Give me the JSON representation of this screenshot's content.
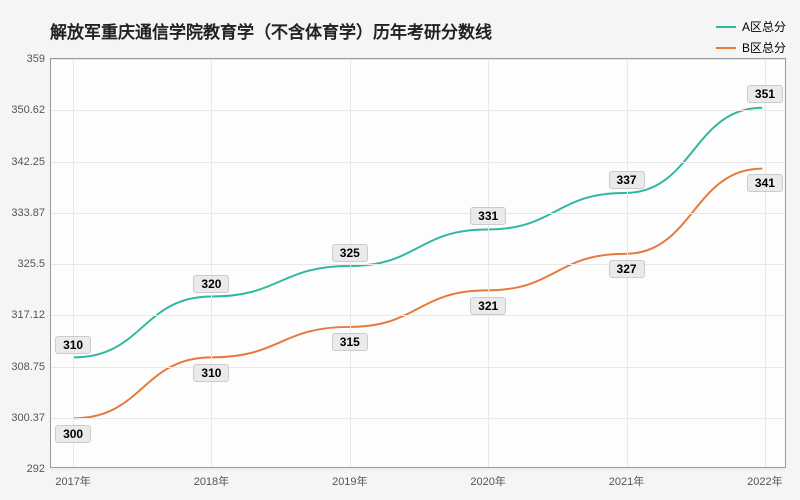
{
  "chart": {
    "type": "line",
    "title": "解放军重庆通信学院教育学（不含体育学）历年考研分数线",
    "title_fontsize": 17,
    "title_color": "#222222",
    "background_color": "#f5f5f5",
    "plot_background": "#fdfdfd",
    "border_color": "#999999",
    "grid_color": "#e8e8e8",
    "line_width": 2,
    "x": {
      "categories": [
        "2017年",
        "2018年",
        "2019年",
        "2020年",
        "2021年",
        "2022年"
      ],
      "label_fontsize": 11,
      "label_color": "#555555"
    },
    "y": {
      "min": 292,
      "max": 359,
      "ticks": [
        292,
        300.37,
        308.75,
        317.12,
        325.5,
        333.87,
        342.25,
        350.62,
        359
      ],
      "label_fontsize": 11,
      "label_color": "#555555"
    },
    "series": [
      {
        "name": "A区总分",
        "color": "#2fb8a0",
        "values": [
          310,
          320,
          325,
          331,
          337,
          351
        ],
        "label_offset_y": -14
      },
      {
        "name": "B区总分",
        "color": "#e67a3c",
        "values": [
          300,
          310,
          315,
          321,
          327,
          341
        ],
        "label_offset_y": 14
      }
    ],
    "legend": {
      "fontsize": 12
    },
    "datalabel": {
      "background": "#eaeaea",
      "border": "#cccccc",
      "fontsize": 12
    }
  }
}
